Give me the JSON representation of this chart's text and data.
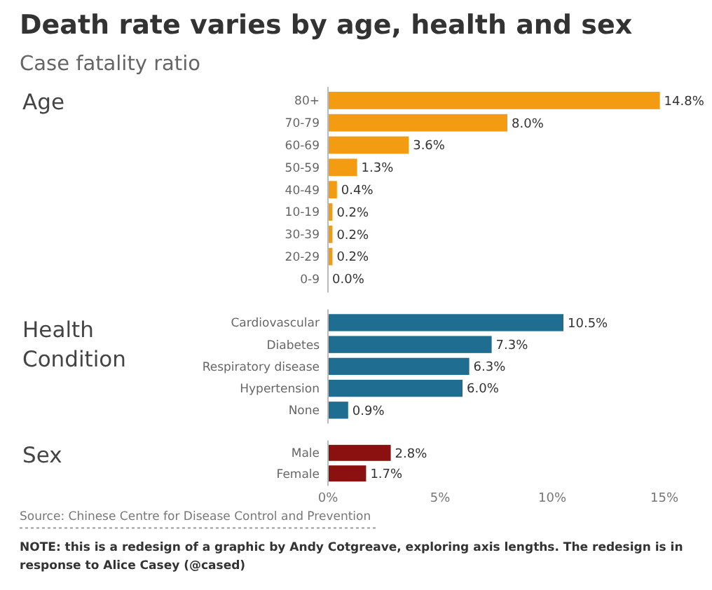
{
  "chart_data": [
    {
      "type": "bar",
      "orientation": "horizontal",
      "title": "Death rate varies by age, health and sex",
      "subtitle": "Case fatality ratio",
      "ylabel": "Age",
      "categories": [
        "80+",
        "70-79",
        "60-69",
        "50-59",
        "40-49",
        "10-19",
        "30-39",
        "20-29",
        "0-9"
      ],
      "values": [
        14.8,
        8.0,
        3.6,
        1.3,
        0.4,
        0.2,
        0.2,
        0.2,
        0.0
      ],
      "value_labels": [
        "14.8%",
        "8.0%",
        "3.6%",
        "1.3%",
        "0.4%",
        "0.2%",
        "0.2%",
        "0.2%",
        "0.0%"
      ],
      "color": "#f39c12",
      "xlim": [
        0,
        15
      ],
      "tick_labels": "y"
    },
    {
      "type": "bar",
      "orientation": "horizontal",
      "ylabel": "Health Condition",
      "categories": [
        "Cardiovascular",
        "Diabetes",
        "Respiratory disease",
        "Hypertension",
        "None"
      ],
      "values": [
        10.5,
        7.3,
        6.3,
        6.0,
        0.9
      ],
      "value_labels": [
        "10.5%",
        "7.3%",
        "6.3%",
        "6.0%",
        "0.9%"
      ],
      "color": "#1f6e91",
      "xlim": [
        0,
        15
      ],
      "tick_labels": "y"
    },
    {
      "type": "bar",
      "orientation": "horizontal",
      "ylabel": "Sex",
      "categories": [
        "Male",
        "Female"
      ],
      "values": [
        2.8,
        1.7
      ],
      "value_labels": [
        "2.8%",
        "1.7%"
      ],
      "color": "#8b1010",
      "xlim": [
        0,
        15
      ],
      "xticks": [
        {
          "value": 0,
          "label": "0%"
        },
        {
          "value": 5,
          "label": "5%"
        },
        {
          "value": 10,
          "label": "10%"
        },
        {
          "value": 15,
          "label": "15%"
        }
      ],
      "annotations": [
        "Source: Chinese Centre for Disease Control and Prevention",
        "NOTE: this is a redesign of a graphic by Andy Cotgreave, exploring axis lengths. The redesign is in response to Alice Casey (@cased)"
      ]
    }
  ]
}
